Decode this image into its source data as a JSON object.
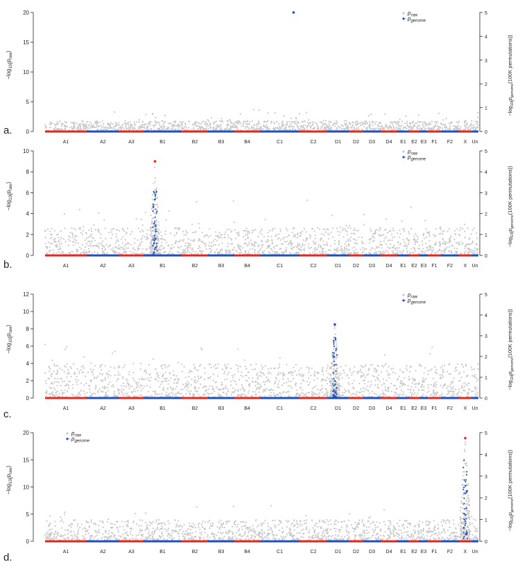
{
  "figure": {
    "panel_labels": [
      "a.",
      "b.",
      "c.",
      "d."
    ]
  },
  "colors": {
    "raw_points": "#c8c8c8",
    "chrom_red": "#e8241c",
    "chrom_blue": "#1f4fbf",
    "axis": "#222222"
  },
  "chart_data": [
    {
      "type": "scatter",
      "panel": "a.",
      "ylabel_left": "−log10(p_raw)",
      "ylabel_right": "−log10(p_genome(100K permutations))",
      "legend": {
        "raw": "p_raw",
        "genome": "p_genome",
        "placement": "top-right"
      },
      "ylim_left": [
        0,
        20
      ],
      "yticks_left": [
        0,
        5,
        10,
        15,
        20
      ],
      "ylim_right": [
        0,
        5
      ],
      "yticks_right": [
        0,
        1,
        2,
        3,
        4,
        5
      ],
      "categories": [
        "A1",
        "A2",
        "A3",
        "B1",
        "B2",
        "B3",
        "B4",
        "C1",
        "C2",
        "D1",
        "D2",
        "D3",
        "D4",
        "E1",
        "E2",
        "E3",
        "F1",
        "F2",
        "X",
        "Un"
      ],
      "genome_points": [
        {
          "chrom": "C1",
          "pos": 0.85,
          "y": 20,
          "color": "blue"
        }
      ]
    },
    {
      "type": "scatter",
      "panel": "b.",
      "ylabel_left": "−log10(p_raw)",
      "ylabel_right": "−log10(p_genome(100K permutations))",
      "legend": {
        "raw": "p_raw",
        "genome": "p_genome",
        "placement": "top-right"
      },
      "ylim_left": [
        0,
        10
      ],
      "yticks_left": [
        0,
        2,
        4,
        6,
        8,
        10
      ],
      "ylim_right": [
        0,
        5
      ],
      "yticks_right": [
        0,
        1,
        2,
        3,
        4,
        5
      ],
      "categories": [
        "A1",
        "A2",
        "A3",
        "B1",
        "B2",
        "B3",
        "B4",
        "C1",
        "C2",
        "D1",
        "D2",
        "D3",
        "D4",
        "E1",
        "E2",
        "E3",
        "F1",
        "F2",
        "X",
        "Un"
      ],
      "peaks": [
        {
          "chrom": "B1",
          "pos": 0.3,
          "y": 9
        }
      ],
      "genome_points": [
        {
          "chrom": "B1",
          "pos": 0.3,
          "y": 9,
          "color": "red"
        }
      ]
    },
    {
      "type": "scatter",
      "panel": "c.",
      "ylabel_left": "−log10(p_raw)",
      "ylabel_right": "−log10(p_genome(100K permutations))",
      "legend": {
        "raw": "p_raw",
        "genome": "p_genome",
        "placement": "top-right"
      },
      "ylim_left": [
        0,
        12
      ],
      "yticks_left": [
        0,
        2,
        4,
        6,
        8,
        10,
        12
      ],
      "ylim_right": [
        0,
        5
      ],
      "yticks_right": [
        0,
        1,
        2,
        3,
        4,
        5
      ],
      "categories": [
        "A1",
        "A2",
        "A3",
        "B1",
        "B2",
        "B3",
        "B4",
        "C1",
        "C2",
        "D1",
        "D2",
        "D3",
        "D4",
        "E1",
        "E2",
        "E3",
        "F1",
        "F2",
        "X",
        "Un"
      ],
      "peaks": [
        {
          "chrom": "D1",
          "pos": 0.35,
          "y": 8.7
        }
      ],
      "genome_points": [
        {
          "chrom": "D1",
          "pos": 0.35,
          "y": 8.5,
          "color": "blue"
        }
      ]
    },
    {
      "type": "scatter",
      "panel": "d.",
      "ylabel_left": "−log10(p_raw)",
      "ylabel_right": "−log10(p_genome(100K permutations))",
      "legend": {
        "raw": "p_raw",
        "genome": "p_genome",
        "placement": "top-left"
      },
      "ylim_left": [
        0,
        20
      ],
      "yticks_left": [
        0,
        5,
        10,
        15,
        20
      ],
      "ylim_right": [
        0,
        5
      ],
      "yticks_right": [
        0,
        1,
        2,
        3,
        4,
        5
      ],
      "categories": [
        "A1",
        "A2",
        "A3",
        "B1",
        "B2",
        "B3",
        "B4",
        "C1",
        "C2",
        "D1",
        "D2",
        "D3",
        "D4",
        "E1",
        "E2",
        "E3",
        "F1",
        "F2",
        "X",
        "Un"
      ],
      "peaks": [
        {
          "chrom": "X",
          "pos": 0.5,
          "y": 19
        }
      ],
      "genome_points": [
        {
          "chrom": "X",
          "pos": 0.5,
          "y": 19,
          "color": "red"
        }
      ]
    }
  ]
}
